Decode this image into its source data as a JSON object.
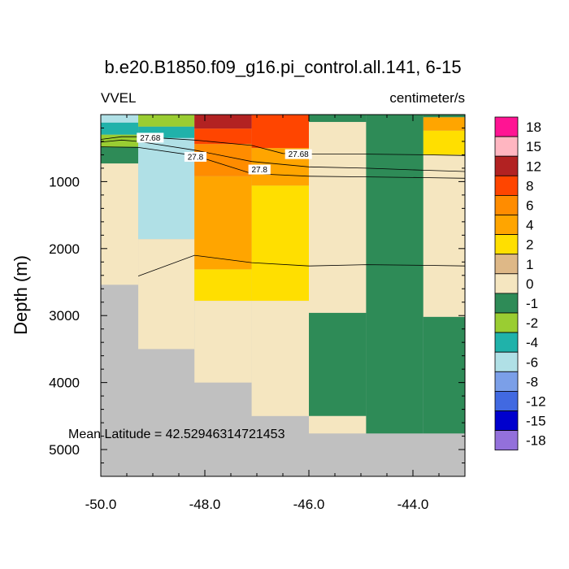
{
  "chart_data": {
    "type": "heatmap",
    "title": "b.e20.B1850.f09_g16.pi_control.all.141, 6-15",
    "left_subtitle": "VVEL",
    "right_subtitle": "centimeter/s",
    "xlabel": "",
    "ylabel": "Depth (m)",
    "xlim": [
      -50.0,
      -43.0
    ],
    "ylim": [
      5400,
      0
    ],
    "x_ticks": [
      -50.0,
      -48.0,
      -46.0,
      -44.0
    ],
    "x_tick_labels": [
      "-50.0",
      "-48.0",
      "-46.0",
      "-44.0"
    ],
    "y_ticks": [
      1000,
      2000,
      3000,
      4000,
      5000
    ],
    "y_tick_labels": [
      "1000",
      "2000",
      "3000",
      "4000",
      "5000"
    ],
    "colorbar": {
      "labels": [
        "18",
        "15",
        "12",
        "8",
        "6",
        "4",
        "2",
        "1",
        "0",
        "-1",
        "-2",
        "-4",
        "-6",
        "-8",
        "-12",
        "-15",
        "-18"
      ],
      "colors": [
        "#ff1493",
        "#ffb6c1",
        "#b22222",
        "#ff4500",
        "#ff8c00",
        "#ffa500",
        "#ffdf00",
        "#deb887",
        "#f5e6c0",
        "#2e8b57",
        "#9acd32",
        "#20b2aa",
        "#b0e0e6",
        "#7b9fe8",
        "#4169e1",
        "#0000cd",
        "#9370db"
      ]
    },
    "land_color": "#c0c0c0",
    "cells": [
      {
        "x0": -50.0,
        "x1": -49.28,
        "y0": 0,
        "y1": 120,
        "bin": "-6"
      },
      {
        "x0": -50.0,
        "x1": -49.28,
        "y0": 120,
        "y1": 300,
        "bin": "-4"
      },
      {
        "x0": -50.0,
        "x1": -49.28,
        "y0": 300,
        "y1": 480,
        "bin": "-2"
      },
      {
        "x0": -50.0,
        "x1": -49.28,
        "y0": 480,
        "y1": 730,
        "bin": "-1"
      },
      {
        "x0": -50.0,
        "x1": -49.28,
        "y0": 730,
        "y1": 2540,
        "bin": "0"
      },
      {
        "x0": -49.28,
        "x1": -48.2,
        "y0": 0,
        "y1": 180,
        "bin": "-2"
      },
      {
        "x0": -49.28,
        "x1": -48.2,
        "y0": 180,
        "y1": 350,
        "bin": "-4"
      },
      {
        "x0": -49.28,
        "x1": -48.2,
        "y0": 350,
        "y1": 1860,
        "bin": "-6"
      },
      {
        "x0": -49.28,
        "x1": -48.2,
        "y0": 1860,
        "y1": 3500,
        "bin": "0"
      },
      {
        "x0": -48.2,
        "x1": -47.1,
        "y0": 0,
        "y1": 210,
        "bin": "12"
      },
      {
        "x0": -48.2,
        "x1": -47.1,
        "y0": 210,
        "y1": 440,
        "bin": "8"
      },
      {
        "x0": -48.2,
        "x1": -47.1,
        "y0": 440,
        "y1": 920,
        "bin": "6"
      },
      {
        "x0": -48.2,
        "x1": -47.1,
        "y0": 920,
        "y1": 2310,
        "bin": "4"
      },
      {
        "x0": -48.2,
        "x1": -47.1,
        "y0": 2310,
        "y1": 2780,
        "bin": "2"
      },
      {
        "x0": -48.2,
        "x1": -47.1,
        "y0": 2780,
        "y1": 4000,
        "bin": "0"
      },
      {
        "x0": -47.1,
        "x1": -46.0,
        "y0": 0,
        "y1": 500,
        "bin": "8"
      },
      {
        "x0": -47.1,
        "x1": -46.0,
        "y0": 500,
        "y1": 1060,
        "bin": "4"
      },
      {
        "x0": -47.1,
        "x1": -46.0,
        "y0": 1060,
        "y1": 2780,
        "bin": "2"
      },
      {
        "x0": -47.1,
        "x1": -46.0,
        "y0": 2780,
        "y1": 4500,
        "bin": "0"
      },
      {
        "x0": -46.0,
        "x1": -44.9,
        "y0": 0,
        "y1": 110,
        "bin": "-1"
      },
      {
        "x0": -46.0,
        "x1": -44.9,
        "y0": 110,
        "y1": 2960,
        "bin": "0"
      },
      {
        "x0": -46.0,
        "x1": -44.9,
        "y0": 2960,
        "y1": 4500,
        "bin": "-1"
      },
      {
        "x0": -46.0,
        "x1": -44.9,
        "y0": 4500,
        "y1": 4760,
        "bin": "0"
      },
      {
        "x0": -44.9,
        "x1": -43.8,
        "y0": 0,
        "y1": 4760,
        "bin": "-1"
      },
      {
        "x0": -43.8,
        "x1": -43.0,
        "y0": 0,
        "y1": 40,
        "bin": "-1"
      },
      {
        "x0": -43.8,
        "x1": -43.0,
        "y0": 40,
        "y1": 240,
        "bin": "4"
      },
      {
        "x0": -43.8,
        "x1": -43.0,
        "y0": 240,
        "y1": 600,
        "bin": "2"
      },
      {
        "x0": -43.8,
        "x1": -43.0,
        "y0": 600,
        "y1": 3020,
        "bin": "0"
      },
      {
        "x0": -43.8,
        "x1": -43.0,
        "y0": 3020,
        "y1": 4760,
        "bin": "-1"
      }
    ],
    "contours": [
      {
        "level": "27.68",
        "points": [
          [
            -50.0,
            370
          ],
          [
            -49.6,
            330
          ],
          [
            -49.28,
            330
          ],
          [
            -48.2,
            380
          ],
          [
            -47.1,
            460
          ],
          [
            -46.5,
            580
          ],
          [
            -46.0,
            590
          ],
          [
            -44.9,
            590
          ],
          [
            -43.8,
            600
          ],
          [
            -43.0,
            610
          ]
        ]
      },
      {
        "level": "27.8",
        "points": [
          [
            -50.0,
            410
          ],
          [
            -49.6,
            380
          ],
          [
            -49.28,
            400
          ],
          [
            -48.2,
            530
          ],
          [
            -47.1,
            700
          ],
          [
            -46.0,
            780
          ],
          [
            -44.9,
            800
          ],
          [
            -43.8,
            830
          ],
          [
            -43.0,
            850
          ]
        ]
      },
      {
        "level": "",
        "points": [
          [
            -50.0,
            480
          ],
          [
            -49.28,
            490
          ],
          [
            -48.2,
            610
          ],
          [
            -47.1,
            880
          ],
          [
            -46.0,
            920
          ],
          [
            -44.9,
            930
          ],
          [
            -43.8,
            940
          ],
          [
            -43.0,
            950
          ]
        ]
      },
      {
        "level": "",
        "points": [
          [
            -49.28,
            2410
          ],
          [
            -48.2,
            2100
          ],
          [
            -47.1,
            2210
          ],
          [
            -46.0,
            2260
          ],
          [
            -44.9,
            2240
          ],
          [
            -43.8,
            2250
          ],
          [
            -43.0,
            2260
          ]
        ]
      }
    ],
    "contour_labels": [
      {
        "text": "27.68",
        "x": -49.05,
        "y": 345
      },
      {
        "text": "27.68",
        "x": -46.2,
        "y": 590
      },
      {
        "text": "27.8",
        "x": -48.18,
        "y": 630
      },
      {
        "text": "27.8",
        "x": -46.95,
        "y": 820
      }
    ],
    "annotation": "Mean Latitude = 42.52946314721453"
  }
}
